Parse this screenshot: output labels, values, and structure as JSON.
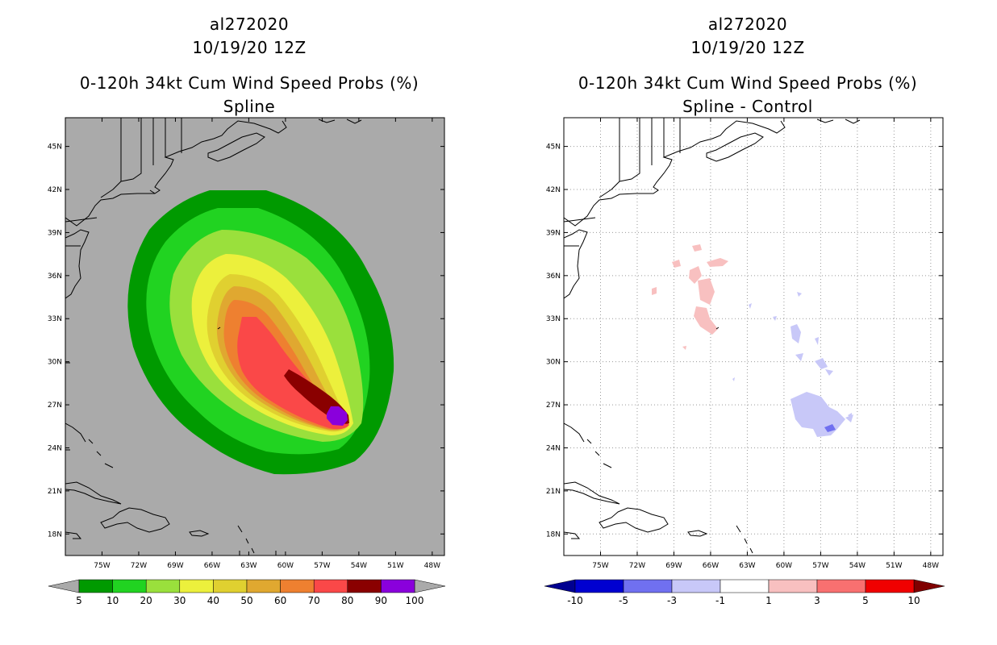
{
  "chart_data": [
    {
      "type": "filled_contour_map",
      "storm_id": "al272020",
      "datetime": "10/19/20 12Z",
      "title": "0-120h 34kt Cum Wind Speed Probs (%)",
      "subtitle": "Spline",
      "units": "%",
      "lon_ticks": [
        "75W",
        "72W",
        "69W",
        "66W",
        "63W",
        "60W",
        "57W",
        "54W",
        "51W",
        "48W"
      ],
      "lat_ticks": [
        "45N",
        "42N",
        "39N",
        "36N",
        "33N",
        "30N",
        "27N",
        "24N",
        "21N",
        "18N"
      ],
      "lon_range": [
        -78,
        -47
      ],
      "lat_range": [
        16.5,
        47
      ],
      "colorbar": {
        "levels": [
          "5",
          "10",
          "20",
          "30",
          "40",
          "50",
          "60",
          "70",
          "80",
          "90",
          "100"
        ],
        "colors": [
          "#009a00",
          "#21d321",
          "#9ae03c",
          "#ecf03c",
          "#e0d030",
          "#e0a830",
          "#ee8030",
          "#fa4848",
          "#8a0000",
          "#8a00dc"
        ],
        "below_color": "#aaaaaa",
        "above_color": "#aaaaaa"
      },
      "land_background": "#aaaaaa"
    },
    {
      "type": "filled_contour_map",
      "storm_id": "al272020",
      "datetime": "10/19/20 12Z",
      "title": "0-120h 34kt Cum Wind Speed Probs (%)",
      "subtitle": "Spline - Control",
      "units": "%",
      "lon_ticks": [
        "75W",
        "72W",
        "69W",
        "66W",
        "63W",
        "60W",
        "57W",
        "54W",
        "51W",
        "48W"
      ],
      "lat_ticks": [
        "45N",
        "42N",
        "39N",
        "36N",
        "33N",
        "30N",
        "27N",
        "24N",
        "21N",
        "18N"
      ],
      "lon_range": [
        -78,
        -47
      ],
      "lat_range": [
        16.5,
        47
      ],
      "colorbar": {
        "levels": [
          "-10",
          "-5",
          "-3",
          "-1",
          "1",
          "3",
          "5",
          "10"
        ],
        "colors": [
          "#0000d0",
          "#7070f0",
          "#c8c8f8",
          "#ffffff",
          "#f8c0c0",
          "#f87070",
          "#f00000"
        ],
        "below_color": "#000090",
        "above_color": "#800000"
      },
      "grid": true
    }
  ]
}
